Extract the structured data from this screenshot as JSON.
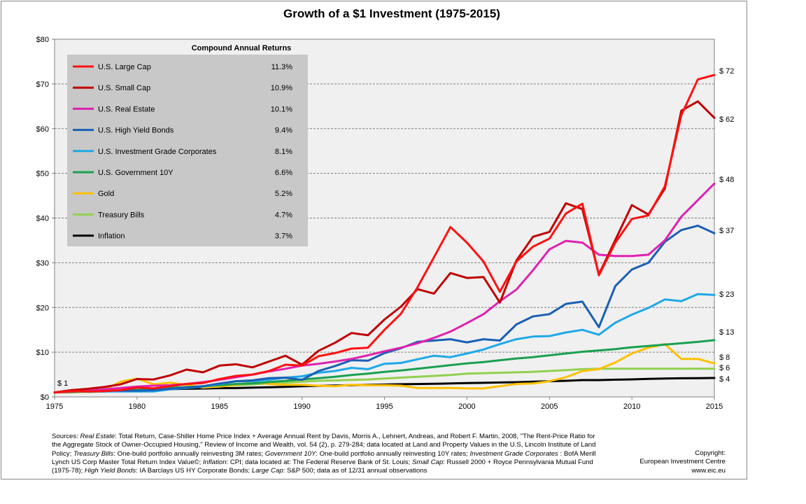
{
  "chart_data": {
    "type": "line",
    "title": "Growth of a $1 Investment (1975-2015)",
    "xlim": [
      1975,
      2015
    ],
    "ylim": [
      0,
      80
    ],
    "x_ticks": [
      "1975",
      "1980",
      "1985",
      "1990",
      "1995",
      "2000",
      "2005",
      "2010",
      "2015"
    ],
    "y_ticks": [
      "$0",
      "$10",
      "$20",
      "$30",
      "$40",
      "$50",
      "$60",
      "$70",
      "$80"
    ],
    "start_label": "$ 1",
    "grid": true,
    "legend_placement": "top-left",
    "legend_header": "Compound Annual Returns",
    "x": [
      1975,
      1976,
      1977,
      1978,
      1979,
      1980,
      1981,
      1982,
      1983,
      1984,
      1985,
      1986,
      1987,
      1988,
      1989,
      1990,
      1991,
      1992,
      1993,
      1994,
      1995,
      1996,
      1997,
      1998,
      1999,
      2000,
      2001,
      2002,
      2003,
      2004,
      2005,
      2006,
      2007,
      2008,
      2009,
      2010,
      2011,
      2012,
      2013,
      2014,
      2015
    ],
    "series": [
      {
        "name": "U.S. Large Cap",
        "return": "11.3%",
        "color": "#ff1111",
        "end_label": "$ 72",
        "values": [
          1,
          1.3,
          1.2,
          1.3,
          1.5,
          2.1,
          1.9,
          2.4,
          2.9,
          3.1,
          4.0,
          4.7,
          5.0,
          5.8,
          7.2,
          7.0,
          9.1,
          9.8,
          10.8,
          11.0,
          15.0,
          18.6,
          24.5,
          31.2,
          38.0,
          34.5,
          30.3,
          23.5,
          30.3,
          33.6,
          35.4,
          41.0,
          43.2,
          27.2,
          34.5,
          39.8,
          40.6,
          47.1,
          63.0,
          71.0,
          72.0
        ]
      },
      {
        "name": "U.S. Small Cap",
        "return": "10.9%",
        "color": "#c00000",
        "end_label": "$ 62",
        "values": [
          1,
          1.5,
          1.8,
          2.2,
          2.8,
          4.0,
          3.9,
          4.8,
          6.1,
          5.5,
          7.0,
          7.3,
          6.6,
          7.9,
          9.2,
          7.2,
          10.3,
          12.1,
          14.3,
          13.8,
          17.3,
          20.2,
          24.1,
          23.1,
          27.7,
          26.6,
          26.8,
          21.1,
          30.5,
          35.8,
          36.9,
          43.3,
          42.0,
          27.4,
          35.1,
          42.9,
          40.8,
          46.6,
          64.0,
          66.1,
          62.4
        ]
      },
      {
        "name": "U.S. Real Estate",
        "return": "10.1%",
        "color": "#e020b0",
        "end_label": "$ 48",
        "values": [
          1,
          1.2,
          1.4,
          1.7,
          2.0,
          2.3,
          2.5,
          2.6,
          2.9,
          3.3,
          3.8,
          4.4,
          5.0,
          5.7,
          6.3,
          7.0,
          7.4,
          7.9,
          8.5,
          9.3,
          10.2,
          11.0,
          12.0,
          13.2,
          14.6,
          16.5,
          18.5,
          21.4,
          24.0,
          28.3,
          33.0,
          34.9,
          34.5,
          31.8,
          31.5,
          31.5,
          31.8,
          35.0,
          40.3,
          44.0,
          47.7
        ]
      },
      {
        "name": "U.S. High Yield Bonds",
        "return": "9.4%",
        "color": "#1a5fb4",
        "end_label": "$ 37",
        "values": [
          1,
          1.3,
          1.3,
          1.4,
          1.4,
          1.4,
          1.5,
          1.8,
          2.1,
          2.4,
          3.0,
          3.5,
          3.7,
          4.2,
          4.3,
          3.8,
          5.8,
          6.9,
          8.2,
          8.1,
          9.8,
          10.9,
          12.3,
          12.6,
          12.9,
          12.2,
          12.9,
          12.6,
          16.2,
          18.0,
          18.5,
          20.8,
          21.3,
          15.6,
          24.8,
          28.5,
          30.0,
          34.7,
          37.3,
          38.3,
          36.6
        ]
      },
      {
        "name": "U.S. Investment Grade Corporates",
        "return": "8.1%",
        "color": "#1ea8e8",
        "end_label": "$ 23",
        "values": [
          1,
          1.2,
          1.2,
          1.2,
          1.2,
          1.2,
          1.2,
          1.7,
          2.0,
          2.3,
          2.9,
          3.5,
          3.5,
          3.8,
          4.3,
          4.6,
          5.4,
          5.8,
          6.5,
          6.2,
          7.4,
          7.6,
          8.4,
          9.2,
          8.9,
          9.7,
          10.6,
          11.8,
          12.9,
          13.5,
          13.6,
          14.4,
          15.0,
          13.9,
          16.6,
          18.4,
          19.9,
          21.8,
          21.4,
          23.0,
          22.8
        ]
      },
      {
        "name": "U.S. Government 10Y",
        "return": "6.6%",
        "color": "#1aa050",
        "end_label": "$ 13",
        "values": [
          1,
          1.1,
          1.2,
          1.3,
          1.4,
          1.6,
          1.7,
          2.0,
          2.2,
          2.4,
          2.6,
          2.9,
          3.0,
          3.3,
          3.6,
          3.9,
          4.2,
          4.5,
          4.9,
          5.2,
          5.6,
          5.9,
          6.3,
          6.7,
          7.1,
          7.5,
          7.8,
          8.2,
          8.6,
          8.9,
          9.3,
          9.7,
          10.1,
          10.4,
          10.7,
          11.1,
          11.4,
          11.7,
          12.0,
          12.3,
          12.7
        ]
      },
      {
        "name": "Gold",
        "return": "5.2%",
        "color": "#ffc000",
        "end_label": "$ 8",
        "values": [
          1,
          1.0,
          1.2,
          1.6,
          3.4,
          4.1,
          2.8,
          3.2,
          2.7,
          2.1,
          2.3,
          2.7,
          3.3,
          2.9,
          2.7,
          2.7,
          2.5,
          2.4,
          2.7,
          2.6,
          2.6,
          2.5,
          2.0,
          2.0,
          2.0,
          1.9,
          1.9,
          2.4,
          2.9,
          3.0,
          3.5,
          4.4,
          5.8,
          6.2,
          7.7,
          9.7,
          11.0,
          11.8,
          8.5,
          8.5,
          7.5
        ]
      },
      {
        "name": "Treasury Bills",
        "return": "4.7%",
        "color": "#92d050",
        "end_label": "$ 6",
        "values": [
          1,
          1.1,
          1.1,
          1.2,
          1.4,
          1.5,
          1.7,
          1.9,
          2.1,
          2.3,
          2.5,
          2.6,
          2.8,
          3.0,
          3.2,
          3.4,
          3.6,
          3.7,
          3.8,
          3.9,
          4.1,
          4.3,
          4.5,
          4.7,
          4.9,
          5.2,
          5.3,
          5.4,
          5.5,
          5.6,
          5.8,
          6.0,
          6.2,
          6.3,
          6.3,
          6.3,
          6.3,
          6.3,
          6.3,
          6.3,
          6.3
        ]
      },
      {
        "name": "Inflation",
        "return": "3.7%",
        "color": "#000000",
        "end_label": "$ 4",
        "values": [
          1,
          1.05,
          1.12,
          1.22,
          1.38,
          1.55,
          1.68,
          1.74,
          1.81,
          1.88,
          1.96,
          1.98,
          2.07,
          2.16,
          2.26,
          2.4,
          2.47,
          2.54,
          2.61,
          2.68,
          2.75,
          2.84,
          2.88,
          2.93,
          3.0,
          3.1,
          3.15,
          3.23,
          3.29,
          3.39,
          3.51,
          3.6,
          3.75,
          3.75,
          3.85,
          3.91,
          4.03,
          4.1,
          4.16,
          4.19,
          4.22
        ]
      }
    ]
  },
  "sources": {
    "prefix": "Sources: ",
    "re_label": "Real Estate",
    "re_text": ": Total Return, Case-Shiller Home Price Index + Average Annual Rent by Davis, Morris A., Lehnert, Andreas, and Robert F. Martin, 2008, \"The Rent-Price Ratio for the Aggregate Stock of Owner-Occupied Housing,\" Review of Income and Wealth, vol. 54 (2), p. 279-284; data located at Land and Property Values in the U.S, Lincoln Institute of Land Policy; ",
    "tb_label": "Treasury Bills",
    "tb_text": ": One-build portfolio annually reinvesting 3M rates; ",
    "gov_label": "Government 10Y",
    "gov_text": ": One-build portfolio annually reinvesting 10Y rates; ",
    "ig_label": "Investment Grade Corporates",
    "ig_text": " : BofA Merill Lynch US Corp Master Total Return Index Value©; ",
    "inf_label": "Inflation",
    "inf_text": ": CPI; data located at: The Federal Reserve Bank of St. Louis; ",
    "sc_label": "Small Cap",
    "sc_text": ": Russell 2000 + Royce Pennsylvania Mutual Fund (1975-78); ",
    "hy_label": "High Yield Bonds",
    "hy_text": ": IA Barclays US HY Corporate Bonds; ",
    "lc_label": "Large Cap",
    "lc_text": ": S&P 500; data as of 12/31 annual observations"
  },
  "copyright": {
    "line1": "Copyright:",
    "line2": "European Investment Centre",
    "line3": "www.eic.eu"
  }
}
